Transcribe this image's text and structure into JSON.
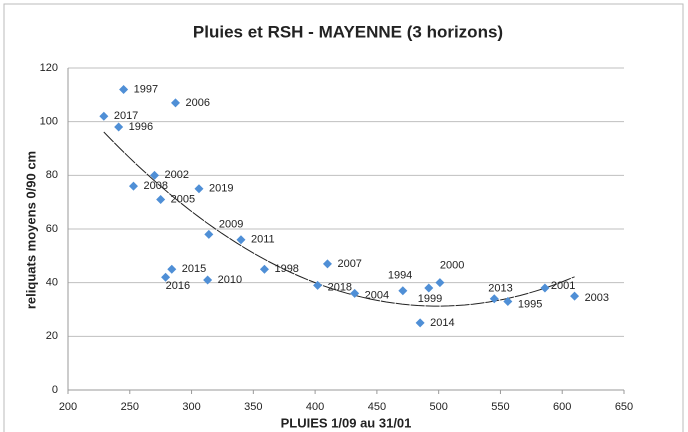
{
  "chart_data": {
    "type": "scatter",
    "title": "Pluies et RSH - MAYENNE (3 horizons)",
    "x_label": "PLUIES 1/09 au 31/01",
    "y_label": "reliquats moyens 0/90 cm",
    "x": [
      245,
      287,
      229,
      241,
      270,
      253,
      306,
      275,
      314,
      340,
      284,
      279,
      313,
      359,
      410,
      402,
      432,
      471,
      492,
      501,
      485,
      545,
      556,
      586,
      610
    ],
    "values": [
      112,
      107,
      102,
      98,
      80,
      76,
      75,
      71,
      58,
      56,
      45,
      42,
      41,
      45,
      47,
      39,
      36,
      37,
      38,
      40,
      25,
      34,
      33,
      38,
      35
    ],
    "point_labels": [
      "1997",
      "2006",
      "2017",
      "1996",
      "2002",
      "2008",
      "2019",
      "2005",
      "2009",
      "2011",
      "2015",
      "2016",
      "2010",
      "1998",
      "2007",
      "2018",
      "2004",
      "1994",
      "1999",
      "2000",
      "2014",
      "2013",
      "1995",
      "2001",
      "2003"
    ],
    "color": "#4f8fd6",
    "trendline": "polynomial",
    "xlim": [
      200,
      650
    ],
    "xticks": [
      200,
      250,
      300,
      350,
      400,
      450,
      500,
      550,
      600,
      650
    ],
    "ylim": [
      0,
      120
    ],
    "yticks": [
      0,
      20,
      40,
      60,
      80,
      100,
      120
    ],
    "grid": true
  }
}
